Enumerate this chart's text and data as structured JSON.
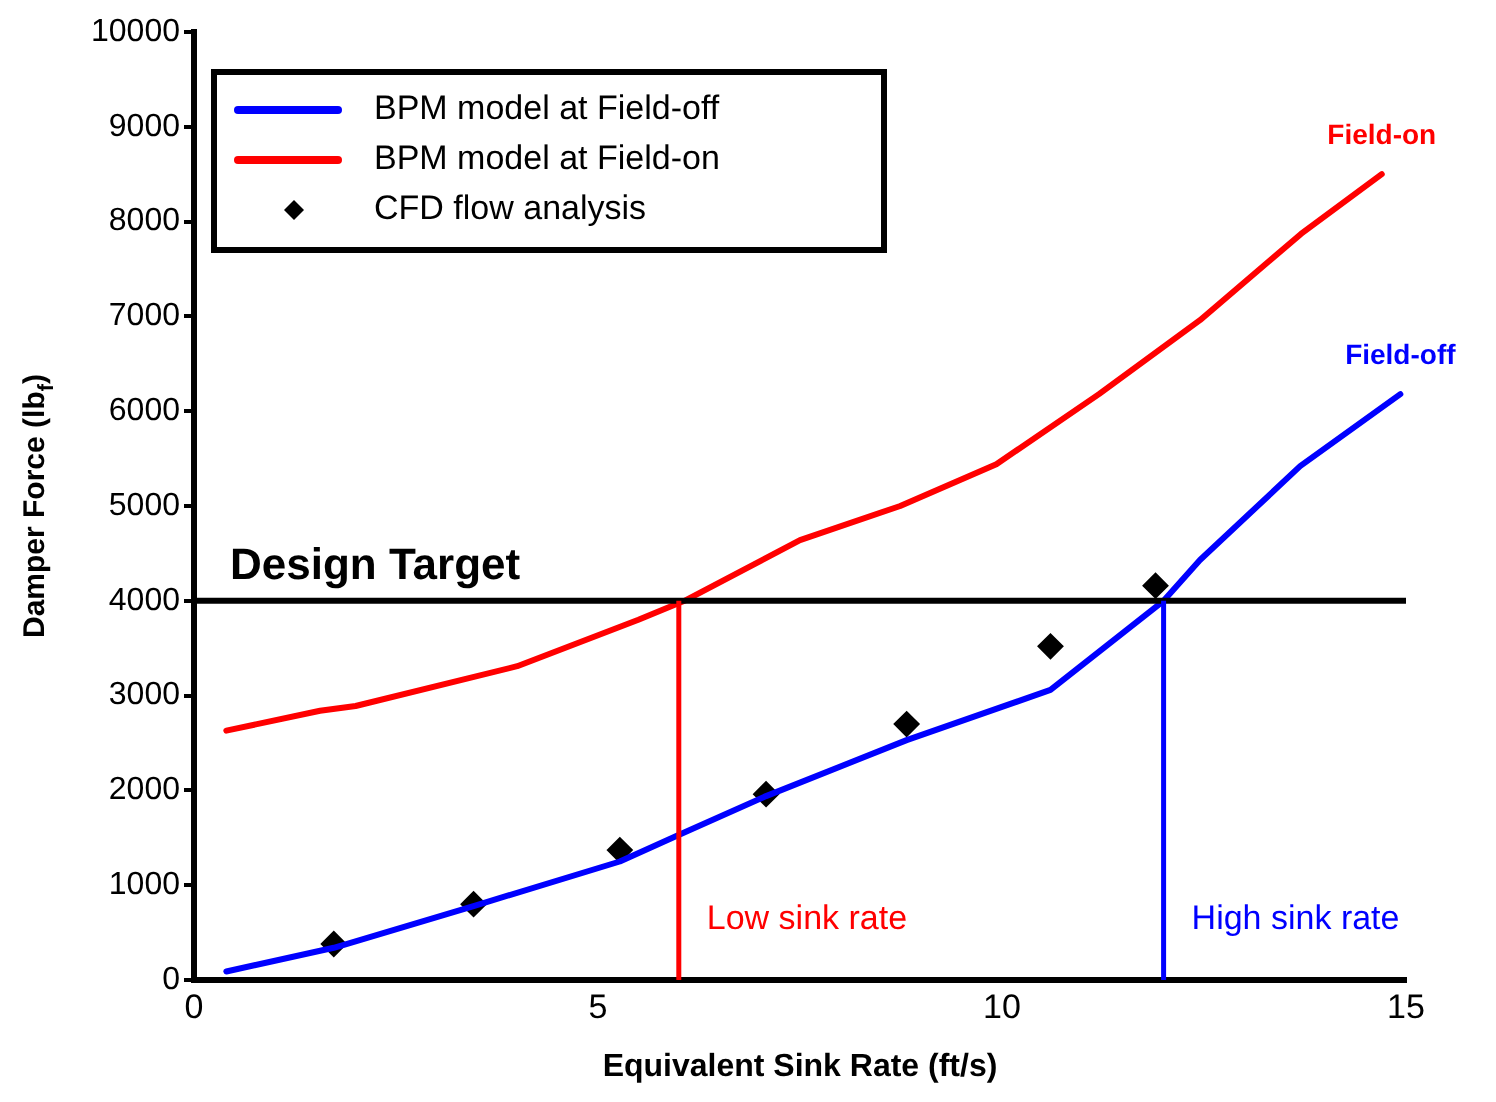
{
  "chart_data": {
    "type": "line",
    "xlabel": "Equivalent Sink Rate (ft/s)",
    "ylabel": "Damper Force (lb$_{f}$)",
    "xlim": [
      0,
      15
    ],
    "xticks": [
      0,
      5,
      10,
      15
    ],
    "ylim": [
      0,
      10000
    ],
    "yticks": [
      0,
      1000,
      2000,
      3000,
      4000,
      5000,
      6000,
      7000,
      8000,
      9000,
      10000
    ],
    "grid": false,
    "legend": "top left",
    "line_style": "solid",
    "series": [
      {
        "name": "BPM model at Field-off",
        "type": "line",
        "color": "#0000ff",
        "marker": "none",
        "x": [
          0.4,
          1.73,
          3.46,
          5.27,
          5.97,
          7.08,
          8.82,
          10.6,
          12,
          12.45,
          13.69,
          14.93
        ],
        "values": [
          90,
          340,
          780,
          1250,
          1520,
          1940,
          2530,
          3060,
          4000,
          4430,
          5420,
          6180
        ]
      },
      {
        "name": "BPM model at Field-on",
        "type": "line",
        "color": "#ff0000",
        "marker": "none",
        "x": [
          0.4,
          1.56,
          2,
          4,
          5.5,
          6.07,
          7.5,
          8.74,
          9.93,
          11.2,
          12.45,
          13.7,
          14.7
        ],
        "values": [
          2630,
          2840,
          2890,
          3310,
          3800,
          4000,
          4640,
          5000,
          5440,
          6180,
          6960,
          7870,
          8500
        ]
      },
      {
        "name": "CFD flow analysis",
        "type": "scatter",
        "color": "#000000",
        "marker": "diamond",
        "x": [
          1.73,
          3.46,
          5.27,
          7.08,
          8.82,
          10.6,
          11.9
        ],
        "values": [
          380,
          800,
          1370,
          1960,
          2700,
          3520,
          4160
        ]
      }
    ],
    "ref_lines": [
      {
        "axis": "y",
        "value": 4000,
        "label": "Design Target",
        "color": "#000000"
      },
      {
        "axis": "x",
        "value": 6,
        "label": "Low sink rate",
        "color": "#ff0000"
      },
      {
        "axis": "x",
        "value": 12,
        "label": "High sink rate",
        "color": "#0000ff"
      }
    ],
    "annotations": [
      {
        "text": "Field-on",
        "x": 14.7,
        "y": 8500
      },
      {
        "text": "Field-off",
        "x": 14.93,
        "y": 6180
      }
    ]
  }
}
